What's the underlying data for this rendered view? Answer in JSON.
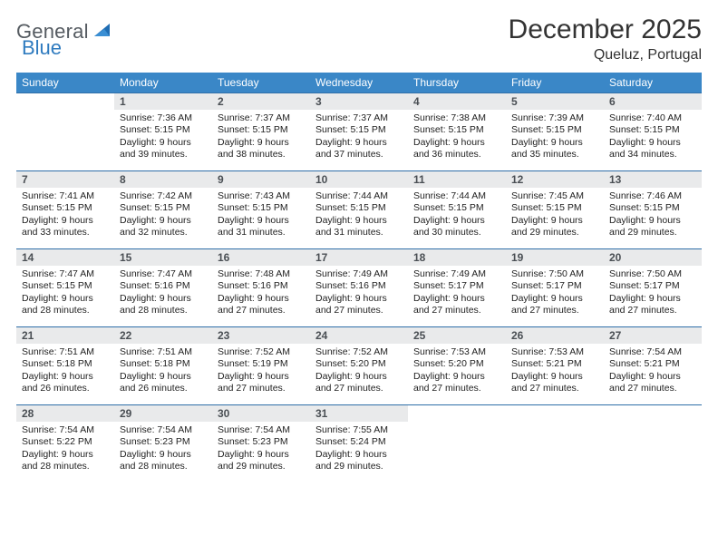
{
  "brand": {
    "text1": "General",
    "text2": "Blue"
  },
  "header": {
    "title": "December 2025",
    "location": "Queluz, Portugal"
  },
  "colors": {
    "header_bg": "#3a87c7",
    "header_fg": "#ffffff",
    "daynum_bg": "#e9eaeb",
    "daynum_fg": "#4a4f54",
    "row_border": "#2f6fa8",
    "logo_gray": "#555b61",
    "logo_blue": "#2f7bbf"
  },
  "typography": {
    "title_fontsize": 30,
    "location_fontsize": 16,
    "weekday_fontsize": 12,
    "daynum_fontsize": 12,
    "body_fontsize": 10.5
  },
  "weekdays": [
    "Sunday",
    "Monday",
    "Tuesday",
    "Wednesday",
    "Thursday",
    "Friday",
    "Saturday"
  ],
  "weeks": [
    [
      {
        "empty": true
      },
      {
        "n": "1",
        "sr": "Sunrise: 7:36 AM",
        "ss": "Sunset: 5:15 PM",
        "d1": "Daylight: 9 hours",
        "d2": "and 39 minutes."
      },
      {
        "n": "2",
        "sr": "Sunrise: 7:37 AM",
        "ss": "Sunset: 5:15 PM",
        "d1": "Daylight: 9 hours",
        "d2": "and 38 minutes."
      },
      {
        "n": "3",
        "sr": "Sunrise: 7:37 AM",
        "ss": "Sunset: 5:15 PM",
        "d1": "Daylight: 9 hours",
        "d2": "and 37 minutes."
      },
      {
        "n": "4",
        "sr": "Sunrise: 7:38 AM",
        "ss": "Sunset: 5:15 PM",
        "d1": "Daylight: 9 hours",
        "d2": "and 36 minutes."
      },
      {
        "n": "5",
        "sr": "Sunrise: 7:39 AM",
        "ss": "Sunset: 5:15 PM",
        "d1": "Daylight: 9 hours",
        "d2": "and 35 minutes."
      },
      {
        "n": "6",
        "sr": "Sunrise: 7:40 AM",
        "ss": "Sunset: 5:15 PM",
        "d1": "Daylight: 9 hours",
        "d2": "and 34 minutes."
      }
    ],
    [
      {
        "n": "7",
        "sr": "Sunrise: 7:41 AM",
        "ss": "Sunset: 5:15 PM",
        "d1": "Daylight: 9 hours",
        "d2": "and 33 minutes."
      },
      {
        "n": "8",
        "sr": "Sunrise: 7:42 AM",
        "ss": "Sunset: 5:15 PM",
        "d1": "Daylight: 9 hours",
        "d2": "and 32 minutes."
      },
      {
        "n": "9",
        "sr": "Sunrise: 7:43 AM",
        "ss": "Sunset: 5:15 PM",
        "d1": "Daylight: 9 hours",
        "d2": "and 31 minutes."
      },
      {
        "n": "10",
        "sr": "Sunrise: 7:44 AM",
        "ss": "Sunset: 5:15 PM",
        "d1": "Daylight: 9 hours",
        "d2": "and 31 minutes."
      },
      {
        "n": "11",
        "sr": "Sunrise: 7:44 AM",
        "ss": "Sunset: 5:15 PM",
        "d1": "Daylight: 9 hours",
        "d2": "and 30 minutes."
      },
      {
        "n": "12",
        "sr": "Sunrise: 7:45 AM",
        "ss": "Sunset: 5:15 PM",
        "d1": "Daylight: 9 hours",
        "d2": "and 29 minutes."
      },
      {
        "n": "13",
        "sr": "Sunrise: 7:46 AM",
        "ss": "Sunset: 5:15 PM",
        "d1": "Daylight: 9 hours",
        "d2": "and 29 minutes."
      }
    ],
    [
      {
        "n": "14",
        "sr": "Sunrise: 7:47 AM",
        "ss": "Sunset: 5:15 PM",
        "d1": "Daylight: 9 hours",
        "d2": "and 28 minutes."
      },
      {
        "n": "15",
        "sr": "Sunrise: 7:47 AM",
        "ss": "Sunset: 5:16 PM",
        "d1": "Daylight: 9 hours",
        "d2": "and 28 minutes."
      },
      {
        "n": "16",
        "sr": "Sunrise: 7:48 AM",
        "ss": "Sunset: 5:16 PM",
        "d1": "Daylight: 9 hours",
        "d2": "and 27 minutes."
      },
      {
        "n": "17",
        "sr": "Sunrise: 7:49 AM",
        "ss": "Sunset: 5:16 PM",
        "d1": "Daylight: 9 hours",
        "d2": "and 27 minutes."
      },
      {
        "n": "18",
        "sr": "Sunrise: 7:49 AM",
        "ss": "Sunset: 5:17 PM",
        "d1": "Daylight: 9 hours",
        "d2": "and 27 minutes."
      },
      {
        "n": "19",
        "sr": "Sunrise: 7:50 AM",
        "ss": "Sunset: 5:17 PM",
        "d1": "Daylight: 9 hours",
        "d2": "and 27 minutes."
      },
      {
        "n": "20",
        "sr": "Sunrise: 7:50 AM",
        "ss": "Sunset: 5:17 PM",
        "d1": "Daylight: 9 hours",
        "d2": "and 27 minutes."
      }
    ],
    [
      {
        "n": "21",
        "sr": "Sunrise: 7:51 AM",
        "ss": "Sunset: 5:18 PM",
        "d1": "Daylight: 9 hours",
        "d2": "and 26 minutes."
      },
      {
        "n": "22",
        "sr": "Sunrise: 7:51 AM",
        "ss": "Sunset: 5:18 PM",
        "d1": "Daylight: 9 hours",
        "d2": "and 26 minutes."
      },
      {
        "n": "23",
        "sr": "Sunrise: 7:52 AM",
        "ss": "Sunset: 5:19 PM",
        "d1": "Daylight: 9 hours",
        "d2": "and 27 minutes."
      },
      {
        "n": "24",
        "sr": "Sunrise: 7:52 AM",
        "ss": "Sunset: 5:20 PM",
        "d1": "Daylight: 9 hours",
        "d2": "and 27 minutes."
      },
      {
        "n": "25",
        "sr": "Sunrise: 7:53 AM",
        "ss": "Sunset: 5:20 PM",
        "d1": "Daylight: 9 hours",
        "d2": "and 27 minutes."
      },
      {
        "n": "26",
        "sr": "Sunrise: 7:53 AM",
        "ss": "Sunset: 5:21 PM",
        "d1": "Daylight: 9 hours",
        "d2": "and 27 minutes."
      },
      {
        "n": "27",
        "sr": "Sunrise: 7:54 AM",
        "ss": "Sunset: 5:21 PM",
        "d1": "Daylight: 9 hours",
        "d2": "and 27 minutes."
      }
    ],
    [
      {
        "n": "28",
        "sr": "Sunrise: 7:54 AM",
        "ss": "Sunset: 5:22 PM",
        "d1": "Daylight: 9 hours",
        "d2": "and 28 minutes."
      },
      {
        "n": "29",
        "sr": "Sunrise: 7:54 AM",
        "ss": "Sunset: 5:23 PM",
        "d1": "Daylight: 9 hours",
        "d2": "and 28 minutes."
      },
      {
        "n": "30",
        "sr": "Sunrise: 7:54 AM",
        "ss": "Sunset: 5:23 PM",
        "d1": "Daylight: 9 hours",
        "d2": "and 29 minutes."
      },
      {
        "n": "31",
        "sr": "Sunrise: 7:55 AM",
        "ss": "Sunset: 5:24 PM",
        "d1": "Daylight: 9 hours",
        "d2": "and 29 minutes."
      },
      {
        "empty": true
      },
      {
        "empty": true
      },
      {
        "empty": true
      }
    ]
  ]
}
